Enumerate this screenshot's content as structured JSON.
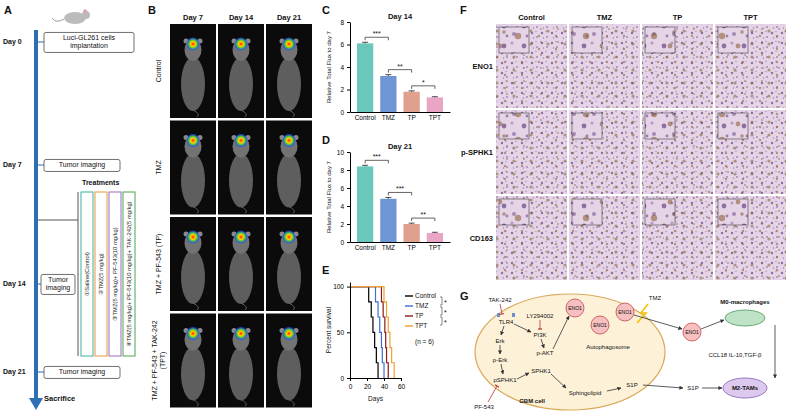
{
  "chart_data": [
    {
      "type": "bar",
      "panel": "C",
      "title": "Day 14",
      "y_label": "Relative Total Flux to day 7",
      "categories": [
        "Control",
        "TMZ",
        "TP",
        "TPT"
      ],
      "values": [
        6.1,
        3.2,
        1.8,
        1.3
      ],
      "errors": [
        0.1,
        0.12,
        0.08,
        0.06
      ],
      "colors": [
        "#69c7bb",
        "#6e95d6",
        "#e0a08e",
        "#e8a6c4"
      ],
      "ylim": [
        0,
        8
      ],
      "yticks": [
        0,
        2,
        4,
        6,
        8
      ],
      "annotations": [
        "***",
        "**",
        "*"
      ]
    },
    {
      "type": "bar",
      "panel": "D",
      "title": "Day 21",
      "y_label": "Relative Total Flux to day 7",
      "categories": [
        "Control",
        "TMZ",
        "TP",
        "TPT"
      ],
      "values": [
        8.4,
        4.8,
        2.0,
        1.0
      ],
      "errors": [
        0.12,
        0.15,
        0.1,
        0.08
      ],
      "colors": [
        "#69c7bb",
        "#6e95d6",
        "#e0a08e",
        "#e8a6c4"
      ],
      "ylim": [
        0,
        10
      ],
      "yticks": [
        0,
        2,
        4,
        6,
        8,
        10
      ],
      "annotations": [
        "***",
        "***",
        "**"
      ]
    },
    {
      "type": "line",
      "panel": "E",
      "y_label": "Percent survival",
      "x_label": "Days",
      "xlim": [
        0,
        60
      ],
      "xticks": [
        0,
        20,
        40,
        60
      ],
      "ylim": [
        0,
        105
      ],
      "yticks": [
        0,
        50,
        100
      ],
      "line_style": "step",
      "legend": "right",
      "series": [
        {
          "name": "Control",
          "color": "#000000",
          "x": [
            0,
            22,
            25,
            27,
            29,
            31,
            33
          ],
          "values": [
            100,
            83.3,
            66.7,
            50,
            33.3,
            16.7,
            0
          ]
        },
        {
          "name": "TMZ",
          "color": "#3a6fd8",
          "x": [
            0,
            30,
            33,
            35,
            37,
            38,
            40
          ],
          "values": [
            100,
            83.3,
            66.7,
            50,
            33.3,
            16.7,
            0
          ]
        },
        {
          "name": "TP",
          "color": "#8b1a1a",
          "x": [
            0,
            37,
            39,
            41,
            42,
            43,
            45
          ],
          "values": [
            100,
            83.3,
            66.7,
            50,
            33.3,
            16.7,
            0
          ]
        },
        {
          "name": "TPT",
          "color": "#f0a030",
          "x": [
            0,
            40,
            43,
            45,
            47,
            49,
            52
          ],
          "values": [
            100,
            83.3,
            66.7,
            50,
            33.3,
            16.7,
            0
          ]
        }
      ],
      "annotations": [
        "*",
        "*",
        "*"
      ],
      "n_label": "(n = 6)"
    }
  ],
  "schedule": {
    "panel": "A",
    "events": [
      {
        "day": "Day 0",
        "label": "Luci-GL261 cells implantation"
      },
      {
        "day": "Day 7",
        "label": "Tumor imaging"
      },
      {
        "day": "Day 14",
        "label": "Tumor imaging"
      },
      {
        "day": "Day 21",
        "label": "Tumor imaging"
      }
    ],
    "end": "Sacrifice",
    "treatments_title": "Treatments",
    "treatments": [
      "①Saline(Control)",
      "②TMZ(5 mg/kg)",
      "③TMZ(5 mg/kg)+ PF-543(10 mg/kg)",
      "④TMZ(5 mg/kg)+ PF-543(10 mg/kg)+ TAK-242(5 mg/kg)"
    ]
  },
  "imaging": {
    "panel": "B",
    "columns": [
      "Day 7",
      "Day 14",
      "Day 21"
    ],
    "rows": [
      "Control",
      "TMZ",
      "TMZ + PF-543 (TP)",
      "TMZ + PF-543 + TAK-242 (TPT)"
    ]
  },
  "ihc": {
    "panel": "F",
    "columns": [
      "Control",
      "TMZ",
      "TP",
      "TPT"
    ],
    "rows": [
      "ENO1",
      "p-SPHK1",
      "CD163"
    ]
  },
  "pathway": {
    "panel": "G",
    "labels": [
      "TAK-242",
      "TLR4",
      "Erk",
      "p-Erk",
      "pSPHK1",
      "PF-543",
      "LY294002",
      "PI3K",
      "p-AKT",
      "SPHK1",
      "ENO1",
      "ENO1",
      "ENO1",
      "Autophagosome",
      "TMZ",
      "Sphingolipid",
      "S1P",
      "GBM cell",
      "ENO1",
      "S1P",
      "M0-macrophages",
      "M2-TAMs",
      "CCL18 IL-10,TGF-β"
    ]
  }
}
